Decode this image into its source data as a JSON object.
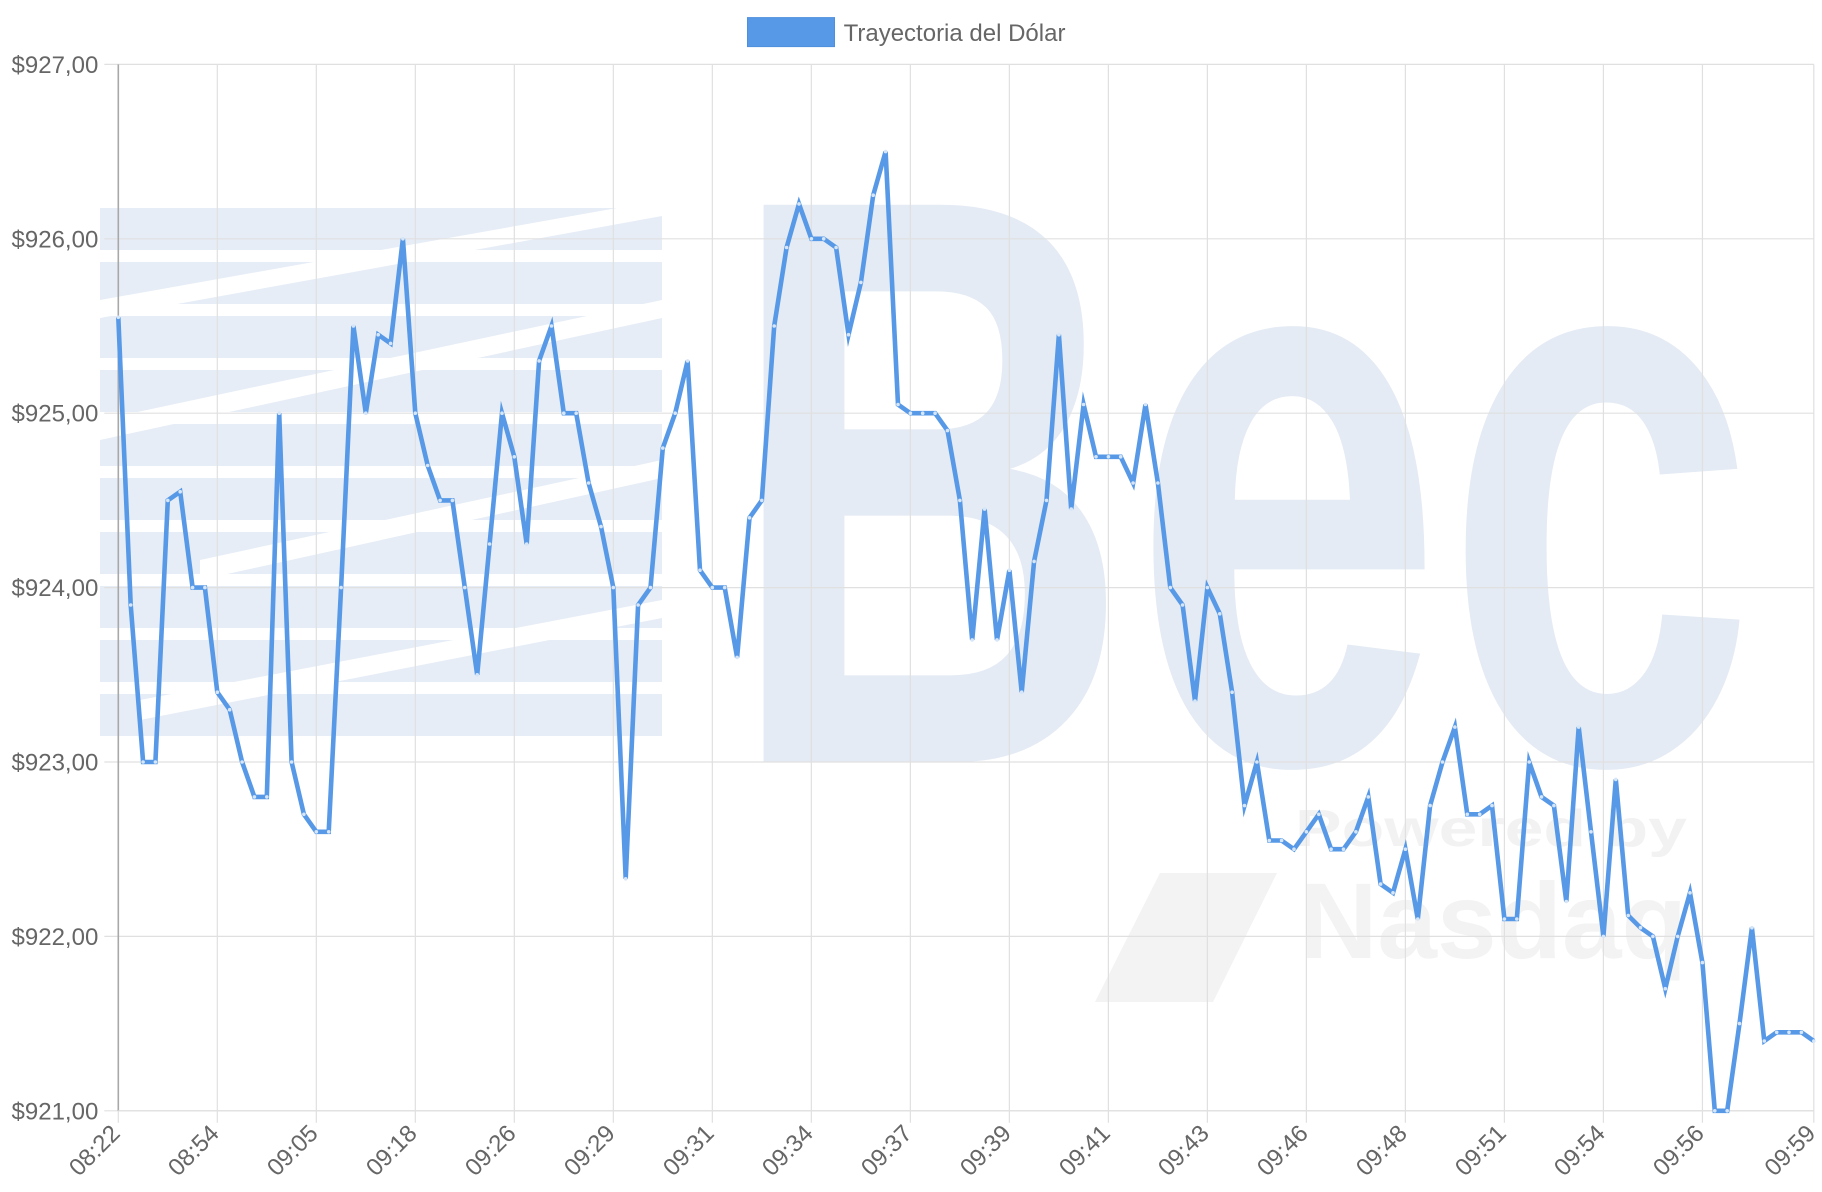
{
  "watermark": {
    "logo": "Bec",
    "tagline": "Powered by",
    "brand": "Nasdaq"
  },
  "colors": {
    "line": "#5799e6",
    "point": "#d6e6f9",
    "grid": "#e0e0e0",
    "axis": "#a8a8a8",
    "label": "#666666",
    "watermark": "#e4ebf4",
    "watermark_nasdaq": "#f3f3f3"
  },
  "chart_data": {
    "type": "line",
    "legend": {
      "position": "top",
      "shown": true
    },
    "series": [
      {
        "name": "Trayectoria del Dólar",
        "color": "#5799e6",
        "values": [
          925.55,
          923.9,
          923.0,
          923.0,
          924.5,
          924.55,
          924.0,
          924.0,
          923.4,
          923.3,
          923.0,
          922.8,
          922.8,
          925.0,
          923.0,
          922.7,
          922.6,
          922.6,
          924.0,
          925.5,
          925.0,
          925.45,
          925.4,
          926.0,
          925.0,
          924.7,
          924.5,
          924.5,
          924.0,
          923.5,
          924.25,
          925.0,
          924.75,
          924.25,
          925.3,
          925.5,
          925.0,
          925.0,
          924.6,
          924.35,
          924.0,
          922.33,
          923.9,
          924.0,
          924.8,
          925.0,
          925.3,
          924.1,
          924.0,
          924.0,
          923.6,
          924.4,
          924.5,
          925.5,
          925.95,
          926.2,
          926.0,
          926.0,
          925.95,
          925.45,
          925.75,
          926.25,
          926.5,
          925.05,
          925.0,
          925.0,
          925.0,
          924.9,
          924.5,
          923.7,
          924.45,
          923.7,
          924.1,
          923.4,
          924.15,
          924.5,
          925.45,
          924.45,
          925.05,
          924.75,
          924.75,
          924.75,
          924.6,
          925.05,
          924.6,
          924.0,
          923.9,
          923.35,
          924.0,
          923.85,
          923.4,
          922.75,
          923.0,
          922.55,
          922.55,
          922.5,
          922.6,
          922.7,
          922.5,
          922.5,
          922.6,
          922.8,
          922.3,
          922.25,
          922.5,
          922.1,
          922.75,
          923.0,
          923.2,
          922.7,
          922.7,
          922.75,
          922.1,
          922.1,
          923.0,
          922.8,
          922.75,
          922.2,
          923.2,
          922.6,
          922.0,
          922.9,
          922.12,
          922.05,
          922.0,
          921.7,
          922.0,
          922.25,
          921.85,
          921.0,
          921.0,
          921.5,
          922.05,
          921.4,
          921.45,
          921.45,
          921.45,
          921.4
        ]
      }
    ],
    "x_tick_labels": [
      {
        "index": 0,
        "label": "08:22"
      },
      {
        "index": 8,
        "label": "08:54"
      },
      {
        "index": 16,
        "label": "09:05"
      },
      {
        "index": 24,
        "label": "09:18"
      },
      {
        "index": 32,
        "label": "09:26"
      },
      {
        "index": 40,
        "label": "09:29"
      },
      {
        "index": 48,
        "label": "09:31"
      },
      {
        "index": 56,
        "label": "09:34"
      },
      {
        "index": 64,
        "label": "09:37"
      },
      {
        "index": 72,
        "label": "09:39"
      },
      {
        "index": 80,
        "label": "09:41"
      },
      {
        "index": 88,
        "label": "09:43"
      },
      {
        "index": 96,
        "label": "09:46"
      },
      {
        "index": 104,
        "label": "09:48"
      },
      {
        "index": 112,
        "label": "09:51"
      },
      {
        "index": 120,
        "label": "09:54"
      },
      {
        "index": 128,
        "label": "09:56"
      },
      {
        "index": 137,
        "label": "09:59"
      }
    ],
    "y_ticks": [
      927,
      926,
      925,
      924,
      923,
      922,
      921
    ],
    "y_tick_labels": [
      "$927,00",
      "$926,00",
      "$925,00",
      "$924,00",
      "$923,00",
      "$922,00",
      "$921,00"
    ],
    "ylim": [
      921,
      927
    ],
    "grid": true
  }
}
